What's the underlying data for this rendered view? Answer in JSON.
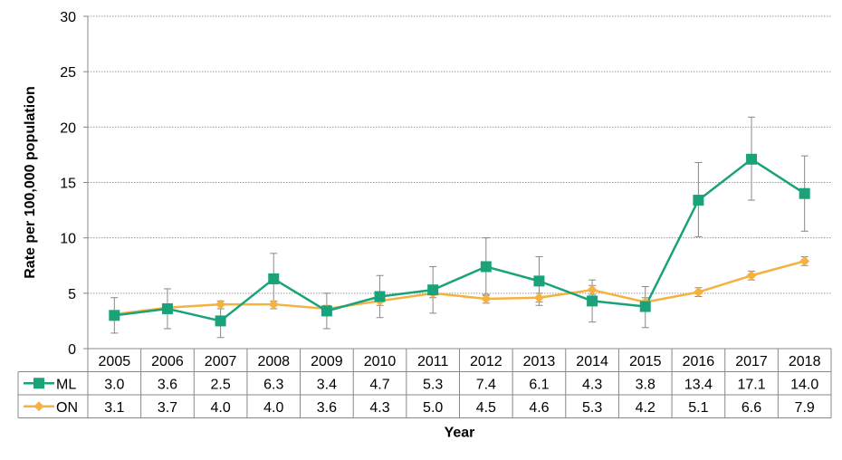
{
  "chart_data": {
    "type": "line",
    "xlabel": "Year",
    "ylabel": "Rate per 100,000 population",
    "ylim": [
      0,
      30
    ],
    "yticks": [
      0,
      5,
      10,
      15,
      20,
      25,
      30
    ],
    "grid": "horizontal dotted",
    "legend": "data table below plot",
    "categories": [
      "2005",
      "2006",
      "2007",
      "2008",
      "2009",
      "2010",
      "2011",
      "2012",
      "2013",
      "2014",
      "2015",
      "2016",
      "2017",
      "2018"
    ],
    "series": [
      {
        "name": "ML",
        "color": "#1aa37a",
        "marker": "square",
        "values": [
          3.0,
          3.6,
          2.5,
          6.3,
          3.4,
          4.7,
          5.3,
          7.4,
          6.1,
          4.3,
          3.8,
          13.4,
          17.1,
          14.0
        ],
        "labels": [
          "3.0",
          "3.6",
          "2.5",
          "6.3",
          "3.4",
          "4.7",
          "5.3",
          "7.4",
          "6.1",
          "4.3",
          "3.8",
          "13.4",
          "17.1",
          "14.0"
        ],
        "ci_low": [
          1.4,
          1.8,
          1.0,
          3.9,
          1.8,
          2.8,
          3.2,
          4.8,
          3.9,
          2.4,
          1.9,
          10.1,
          13.4,
          10.6
        ],
        "ci_high": [
          4.6,
          5.4,
          4.0,
          8.6,
          5.0,
          6.6,
          7.4,
          10.0,
          8.3,
          6.2,
          5.6,
          16.8,
          20.9,
          17.4
        ]
      },
      {
        "name": "ON",
        "color": "#f5b240",
        "marker": "diamond",
        "values": [
          3.1,
          3.7,
          4.0,
          4.0,
          3.6,
          4.3,
          5.0,
          4.5,
          4.6,
          5.3,
          4.2,
          5.1,
          6.6,
          7.9
        ],
        "labels": [
          "3.1",
          "3.7",
          "4.0",
          "4.0",
          "3.6",
          "4.3",
          "5.0",
          "4.5",
          "4.6",
          "5.3",
          "4.2",
          "5.1",
          "6.6",
          "7.9"
        ],
        "ci_low": [
          2.8,
          3.4,
          3.6,
          3.6,
          3.2,
          3.9,
          4.6,
          4.1,
          4.2,
          4.9,
          3.8,
          4.7,
          6.2,
          7.5
        ],
        "ci_high": [
          3.4,
          4.0,
          4.3,
          4.3,
          3.9,
          4.7,
          5.4,
          4.9,
          5.0,
          5.7,
          4.6,
          5.5,
          7.0,
          8.3
        ]
      }
    ]
  }
}
